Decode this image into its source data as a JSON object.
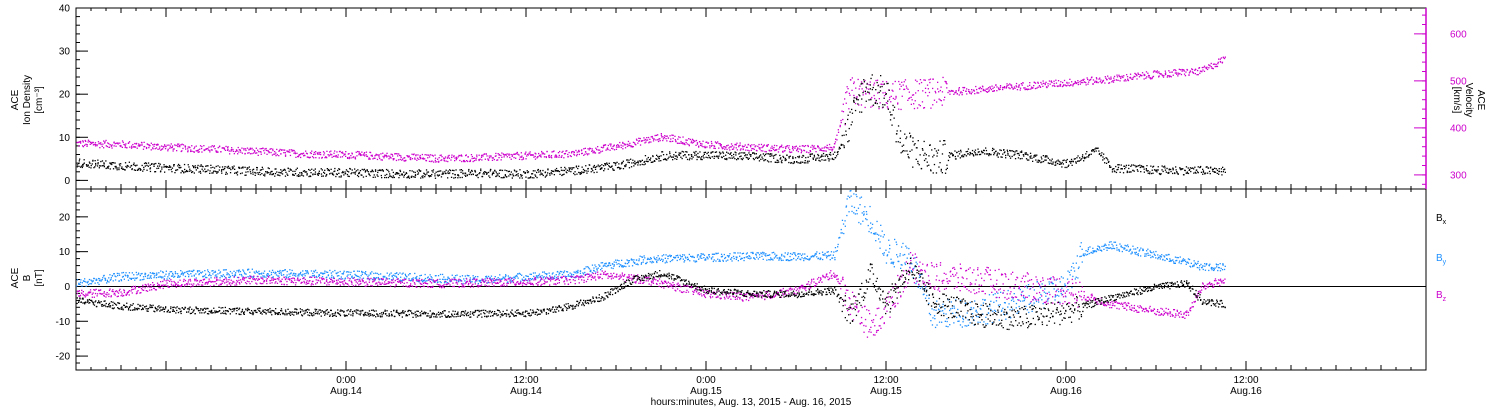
{
  "figure": {
    "xlabel": "hours:minutes, Aug. 13, 2015 - Aug. 16, 2015",
    "x_ticks": [
      {
        "time": "0:00",
        "date": "Aug.14"
      },
      {
        "time": "12:00",
        "date": "Aug.14"
      },
      {
        "time": "0:00",
        "date": "Aug.15"
      },
      {
        "time": "12:00",
        "date": "Aug.15"
      },
      {
        "time": "0:00",
        "date": "Aug.16"
      },
      {
        "time": "12:00",
        "date": "Aug.16"
      }
    ]
  },
  "colors": {
    "density": "#000000",
    "velocity": "#cc00cc",
    "bx": "#000000",
    "by": "#1e90ff",
    "bz": "#cc00cc"
  },
  "chart_data": [
    {
      "type": "scatter",
      "title": "",
      "x_range": [
        "2015-08-13 06:00",
        "2015-08-17 00:00"
      ],
      "left_axis": {
        "label_lines": [
          "ACE",
          "Ion Density",
          "[cm⁻³]"
        ],
        "ylim": [
          -2,
          40
        ],
        "ticks": [
          0,
          10,
          20,
          30,
          40
        ]
      },
      "right_axis": {
        "label_lines": [
          "ACE",
          "Velocity",
          "[km/s]"
        ],
        "ylim": [
          270,
          655
        ],
        "ticks": [
          300,
          400,
          500,
          600
        ]
      },
      "series": [
        {
          "name": "",
          "axis": "left",
          "unit": "cm^-3",
          "points": [
            [
              "2015-08-13 06:00",
              4.2
            ],
            [
              "2015-08-13 09:00",
              3.5
            ],
            [
              "2015-08-13 12:00",
              3.0
            ],
            [
              "2015-08-13 15:00",
              2.7
            ],
            [
              "2015-08-13 18:00",
              2.2
            ],
            [
              "2015-08-13 21:00",
              2.0
            ],
            [
              "2015-08-14 00:00",
              1.9
            ],
            [
              "2015-08-14 03:00",
              1.7
            ],
            [
              "2015-08-14 06:00",
              1.6
            ],
            [
              "2015-08-14 09:00",
              1.8
            ],
            [
              "2015-08-14 12:00",
              1.6
            ],
            [
              "2015-08-14 15:00",
              2.4
            ],
            [
              "2015-08-14 18:00",
              3.4
            ],
            [
              "2015-08-14 21:00",
              5.8
            ],
            [
              "2015-08-15 00:00",
              6.0
            ],
            [
              "2015-08-15 03:00",
              5.6
            ],
            [
              "2015-08-15 06:00",
              5.0
            ],
            [
              "2015-08-15 08:30",
              5.8
            ],
            [
              "2015-08-15 09:30",
              13.0
            ],
            [
              "2015-08-15 10:30",
              22.0
            ],
            [
              "2015-08-15 12:00",
              20.0
            ],
            [
              "2015-08-15 13:00",
              8.0
            ],
            [
              "2015-08-15 15:00",
              5.0
            ],
            [
              "2015-08-15 18:00",
              7.0
            ],
            [
              "2015-08-15 21:00",
              6.0
            ],
            [
              "2015-08-16 00:00",
              4.0
            ],
            [
              "2015-08-16 02:00",
              7.0
            ],
            [
              "2015-08-16 03:00",
              3.0
            ],
            [
              "2015-08-16 06:00",
              2.5
            ],
            [
              "2015-08-16 09:00",
              2.4
            ],
            [
              "2015-08-16 10:30",
              2.3
            ]
          ]
        },
        {
          "name": "",
          "axis": "right",
          "unit": "km/s",
          "points": [
            [
              "2015-08-13 06:00",
              368
            ],
            [
              "2015-08-13 09:00",
              366
            ],
            [
              "2015-08-13 12:00",
              360
            ],
            [
              "2015-08-13 15:00",
              356
            ],
            [
              "2015-08-13 18:00",
              351
            ],
            [
              "2015-08-13 21:00",
              346
            ],
            [
              "2015-08-14 00:00",
              344
            ],
            [
              "2015-08-14 03:00",
              340
            ],
            [
              "2015-08-14 06:00",
              336
            ],
            [
              "2015-08-14 09:00",
              338
            ],
            [
              "2015-08-14 12:00",
              342
            ],
            [
              "2015-08-14 15:00",
              346
            ],
            [
              "2015-08-14 18:00",
              362
            ],
            [
              "2015-08-14 21:00",
              382
            ],
            [
              "2015-08-15 00:00",
              365
            ],
            [
              "2015-08-15 03:00",
              360
            ],
            [
              "2015-08-15 06:00",
              355
            ],
            [
              "2015-08-15 08:30",
              360
            ],
            [
              "2015-08-15 09:30",
              478
            ],
            [
              "2015-08-15 12:00",
              470
            ],
            [
              "2015-08-15 15:00",
              475
            ],
            [
              "2015-08-15 18:00",
              482
            ],
            [
              "2015-08-15 21:00",
              490
            ],
            [
              "2015-08-16 00:00",
              497
            ],
            [
              "2015-08-16 03:00",
              505
            ],
            [
              "2015-08-16 06:00",
              515
            ],
            [
              "2015-08-16 09:00",
              522
            ],
            [
              "2015-08-16 10:30",
              548
            ]
          ]
        }
      ]
    },
    {
      "type": "scatter",
      "title": "",
      "x_range": [
        "2015-08-13 06:00",
        "2015-08-17 00:00"
      ],
      "left_axis": {
        "label_lines": [
          "ACE",
          "B",
          "[nT]"
        ],
        "ylim": [
          -24,
          28
        ],
        "ticks": [
          -20,
          -10,
          0,
          10,
          20
        ]
      },
      "zero_line": true,
      "series": [
        {
          "name": "Bx",
          "legend_base": "B",
          "legend_sub": "x",
          "points": [
            [
              "2015-08-13 06:00",
              -4
            ],
            [
              "2015-08-13 09:00",
              -5.5
            ],
            [
              "2015-08-13 12:00",
              -6.5
            ],
            [
              "2015-08-13 18:00",
              -7
            ],
            [
              "2015-08-14 00:00",
              -7.5
            ],
            [
              "2015-08-14 06:00",
              -7.8
            ],
            [
              "2015-08-14 12:00",
              -7.5
            ],
            [
              "2015-08-14 14:00",
              -6.5
            ],
            [
              "2015-08-14 17:00",
              -3
            ],
            [
              "2015-08-14 19:00",
              2
            ],
            [
              "2015-08-14 21:00",
              4
            ],
            [
              "2015-08-15 00:00",
              -1
            ],
            [
              "2015-08-15 03:00",
              -2
            ],
            [
              "2015-08-15 06:00",
              -2
            ],
            [
              "2015-08-15 08:30",
              -1
            ],
            [
              "2015-08-15 09:30",
              -8
            ],
            [
              "2015-08-15 11:00",
              4
            ],
            [
              "2015-08-15 12:00",
              -5
            ],
            [
              "2015-08-15 13:30",
              6
            ],
            [
              "2015-08-15 15:00",
              -4
            ],
            [
              "2015-08-15 18:00",
              -8
            ],
            [
              "2015-08-15 21:00",
              -9
            ],
            [
              "2015-08-16 00:00",
              -7
            ],
            [
              "2015-08-16 03:00",
              -3
            ],
            [
              "2015-08-16 06:00",
              0
            ],
            [
              "2015-08-16 08:00",
              1
            ],
            [
              "2015-08-16 09:00",
              -4
            ],
            [
              "2015-08-16 10:30",
              -5
            ]
          ]
        },
        {
          "name": "By",
          "legend_base": "B",
          "legend_sub": "y",
          "points": [
            [
              "2015-08-13 06:00",
              1
            ],
            [
              "2015-08-13 09:00",
              3
            ],
            [
              "2015-08-13 12:00",
              3.5
            ],
            [
              "2015-08-13 18:00",
              4
            ],
            [
              "2015-08-14 00:00",
              3.5
            ],
            [
              "2015-08-14 06:00",
              2.5
            ],
            [
              "2015-08-14 09:00",
              2
            ],
            [
              "2015-08-14 12:00",
              3
            ],
            [
              "2015-08-14 15:00",
              3.5
            ],
            [
              "2015-08-14 17:00",
              6
            ],
            [
              "2015-08-14 20:00",
              8
            ],
            [
              "2015-08-15 00:00",
              8.5
            ],
            [
              "2015-08-15 03:00",
              8.8
            ],
            [
              "2015-08-15 06:00",
              8.8
            ],
            [
              "2015-08-15 08:30",
              9
            ],
            [
              "2015-08-15 09:30",
              25
            ],
            [
              "2015-08-15 11:00",
              19
            ],
            [
              "2015-08-15 12:00",
              10
            ],
            [
              "2015-08-15 13:30",
              9
            ],
            [
              "2015-08-15 15:00",
              -8
            ],
            [
              "2015-08-15 18:00",
              -7
            ],
            [
              "2015-08-15 21:00",
              -4
            ],
            [
              "2015-08-16 00:00",
              0
            ],
            [
              "2015-08-16 01:00",
              10
            ],
            [
              "2015-08-16 03:00",
              12
            ],
            [
              "2015-08-16 06:00",
              9
            ],
            [
              "2015-08-16 09:00",
              6
            ],
            [
              "2015-08-16 10:30",
              5.5
            ]
          ]
        },
        {
          "name": "Bz",
          "legend_base": "B",
          "legend_sub": "z",
          "points": [
            [
              "2015-08-13 06:00",
              -2
            ],
            [
              "2015-08-13 09:00",
              -1.5
            ],
            [
              "2015-08-13 12:00",
              1
            ],
            [
              "2015-08-13 18:00",
              2
            ],
            [
              "2015-08-14 00:00",
              1.5
            ],
            [
              "2015-08-14 06:00",
              1
            ],
            [
              "2015-08-14 12:00",
              1.5
            ],
            [
              "2015-08-14 15:00",
              2
            ],
            [
              "2015-08-14 17:00",
              3.5
            ],
            [
              "2015-08-14 20:00",
              2
            ],
            [
              "2015-08-15 00:00",
              -2
            ],
            [
              "2015-08-15 03:00",
              -3
            ],
            [
              "2015-08-15 06:00",
              -1
            ],
            [
              "2015-08-15 08:30",
              4
            ],
            [
              "2015-08-15 09:30",
              -4
            ],
            [
              "2015-08-15 11:00",
              -12
            ],
            [
              "2015-08-15 12:00",
              -6
            ],
            [
              "2015-08-15 13:30",
              6
            ],
            [
              "2015-08-15 15:00",
              3
            ],
            [
              "2015-08-15 18:00",
              2
            ],
            [
              "2015-08-15 21:00",
              0
            ],
            [
              "2015-08-16 00:00",
              -1
            ],
            [
              "2015-08-16 03:00",
              -5
            ],
            [
              "2015-08-16 06:00",
              -7
            ],
            [
              "2015-08-16 08:00",
              -8
            ],
            [
              "2015-08-16 09:00",
              0
            ],
            [
              "2015-08-16 10:30",
              2
            ]
          ]
        }
      ]
    }
  ]
}
